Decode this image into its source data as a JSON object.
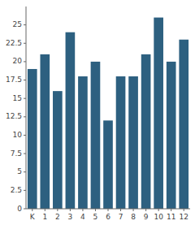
{
  "chart_data": {
    "type": "bar",
    "categories": [
      "K",
      "1",
      "2",
      "3",
      "4",
      "5",
      "6",
      "7",
      "8",
      "9",
      "10",
      "11",
      "12"
    ],
    "values": [
      19,
      21,
      16,
      24,
      18,
      20,
      12,
      18,
      18,
      21,
      26,
      20,
      23
    ],
    "color": "#2d6080",
    "ylim": [
      0,
      27.5
    ],
    "yticks": [
      0,
      2.5,
      5,
      7.5,
      10,
      12.5,
      15,
      17.5,
      20,
      22.5,
      25
    ]
  }
}
